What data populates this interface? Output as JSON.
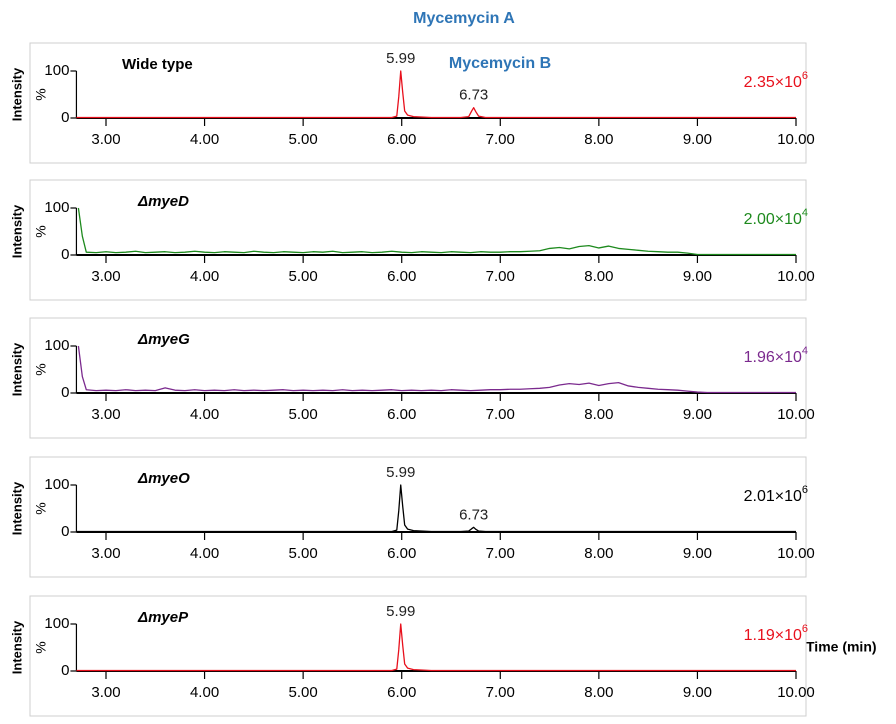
{
  "header": {
    "compound_a": "Mycemycin A",
    "compound_b": "Mycemycin B"
  },
  "x_axis_label": "Time (min)",
  "chart_data": [
    {
      "type": "line",
      "title": "Wide type",
      "color": "#e8101c",
      "x": [
        2.7,
        3.2,
        3.7,
        4.2,
        4.7,
        5.2,
        5.7,
        5.9,
        5.95,
        5.97,
        5.99,
        6.01,
        6.03,
        6.06,
        6.12,
        6.3,
        6.6,
        6.68,
        6.71,
        6.73,
        6.75,
        6.78,
        6.85,
        7.2,
        7.7,
        8.2,
        8.7,
        9.2,
        9.7,
        10.0
      ],
      "values": [
        1,
        1,
        1,
        1,
        1,
        1,
        1,
        1,
        4,
        45,
        100,
        55,
        15,
        6,
        3,
        1,
        1,
        3,
        15,
        22,
        14,
        4,
        1,
        1,
        1,
        1,
        1,
        1,
        1,
        1
      ],
      "xlim": [
        2.7,
        10.0
      ],
      "ylim": [
        0,
        100
      ],
      "xticks": [
        {
          "value": 3,
          "label": "3.00"
        },
        {
          "value": 4,
          "label": "4.00"
        },
        {
          "value": 5,
          "label": "5.00"
        },
        {
          "value": 6,
          "label": "6.00"
        },
        {
          "value": 7,
          "label": "7.00"
        },
        {
          "value": 8,
          "label": "8.00"
        },
        {
          "value": 9,
          "label": "9.00"
        },
        {
          "value": 10,
          "label": "10.00"
        }
      ],
      "yticks": [
        0,
        100
      ],
      "ylabel": "Intensity",
      "y_unit": "%",
      "scale": {
        "text": "2.35×10",
        "exponent": "6"
      },
      "peak_labels": [
        5.99,
        6.73
      ]
    },
    {
      "type": "line",
      "title": "ΔmyeD",
      "color": "#1e8a1e",
      "x": [
        2.72,
        2.76,
        2.8,
        2.9,
        3.0,
        3.1,
        3.2,
        3.3,
        3.4,
        3.5,
        3.6,
        3.7,
        3.8,
        3.9,
        4.0,
        4.1,
        4.2,
        4.3,
        4.4,
        4.5,
        4.6,
        4.7,
        4.8,
        4.9,
        5.0,
        5.1,
        5.2,
        5.3,
        5.4,
        5.5,
        5.6,
        5.7,
        5.8,
        5.9,
        6.0,
        6.1,
        6.2,
        6.3,
        6.4,
        6.5,
        6.6,
        6.7,
        6.8,
        6.9,
        7.0,
        7.1,
        7.2,
        7.3,
        7.4,
        7.5,
        7.6,
        7.7,
        7.8,
        7.9,
        8.0,
        8.1,
        8.2,
        8.3,
        8.4,
        8.5,
        8.6,
        8.7,
        8.8,
        8.9,
        9.0,
        9.1,
        9.2,
        9.4,
        9.6,
        9.8,
        10.0
      ],
      "values": [
        100,
        40,
        6,
        5,
        7,
        5,
        6,
        8,
        5,
        6,
        7,
        5,
        6,
        8,
        6,
        5,
        7,
        6,
        5,
        8,
        6,
        5,
        7,
        6,
        5,
        7,
        6,
        8,
        5,
        6,
        7,
        5,
        6,
        8,
        6,
        5,
        7,
        6,
        5,
        7,
        6,
        5,
        7,
        6,
        6,
        7,
        7,
        8,
        9,
        14,
        16,
        13,
        18,
        20,
        15,
        19,
        14,
        12,
        10,
        8,
        7,
        6,
        6,
        4,
        1,
        1,
        1,
        1,
        1,
        1,
        1
      ],
      "xlim": [
        2.7,
        10.0
      ],
      "ylim": [
        0,
        100
      ],
      "xticks": [
        {
          "value": 3,
          "label": "3.00"
        },
        {
          "value": 4,
          "label": "4.00"
        },
        {
          "value": 5,
          "label": "5.00"
        },
        {
          "value": 6,
          "label": "6.00"
        },
        {
          "value": 7,
          "label": "7.00"
        },
        {
          "value": 8,
          "label": "8.00"
        },
        {
          "value": 9,
          "label": "9.00"
        },
        {
          "value": 10,
          "label": "10.00"
        }
      ],
      "yticks": [
        0,
        100
      ],
      "ylabel": "Intensity",
      "y_unit": "%",
      "scale": {
        "text": "2.00×10",
        "exponent": "4"
      },
      "peak_labels": []
    },
    {
      "type": "line",
      "title": "ΔmyeG",
      "color": "#7b2a8e",
      "x": [
        2.72,
        2.76,
        2.8,
        2.9,
        3.0,
        3.1,
        3.2,
        3.3,
        3.4,
        3.5,
        3.6,
        3.7,
        3.8,
        3.9,
        4.0,
        4.1,
        4.2,
        4.3,
        4.4,
        4.5,
        4.6,
        4.7,
        4.8,
        4.9,
        5.0,
        5.1,
        5.2,
        5.3,
        5.4,
        5.5,
        5.6,
        5.7,
        5.8,
        5.9,
        6.0,
        6.1,
        6.2,
        6.3,
        6.4,
        6.5,
        6.6,
        6.7,
        6.8,
        6.9,
        7.0,
        7.1,
        7.2,
        7.3,
        7.4,
        7.5,
        7.6,
        7.7,
        7.8,
        7.9,
        8.0,
        8.1,
        8.2,
        8.3,
        8.4,
        8.5,
        8.6,
        8.7,
        8.8,
        8.9,
        9.0,
        9.1,
        9.2,
        9.4,
        9.6,
        9.8,
        10.0
      ],
      "values": [
        100,
        35,
        7,
        5,
        6,
        5,
        7,
        5,
        6,
        5,
        11,
        6,
        5,
        7,
        5,
        6,
        5,
        7,
        5,
        6,
        5,
        6,
        7,
        5,
        6,
        5,
        6,
        5,
        7,
        5,
        6,
        5,
        6,
        7,
        5,
        6,
        5,
        6,
        5,
        7,
        6,
        5,
        6,
        7,
        7,
        8,
        8,
        9,
        10,
        12,
        17,
        20,
        18,
        21,
        16,
        20,
        22,
        15,
        12,
        10,
        8,
        7,
        6,
        4,
        2,
        1,
        1,
        1,
        1,
        1,
        1
      ],
      "xlim": [
        2.7,
        10.0
      ],
      "ylim": [
        0,
        100
      ],
      "xticks": [
        {
          "value": 3,
          "label": "3.00"
        },
        {
          "value": 4,
          "label": "4.00"
        },
        {
          "value": 5,
          "label": "5.00"
        },
        {
          "value": 6,
          "label": "6.00"
        },
        {
          "value": 7,
          "label": "7.00"
        },
        {
          "value": 8,
          "label": "8.00"
        },
        {
          "value": 9,
          "label": "9.00"
        },
        {
          "value": 10,
          "label": "10.00"
        }
      ],
      "yticks": [
        0,
        100
      ],
      "ylabel": "Intensity",
      "y_unit": "%",
      "scale": {
        "text": "1.96×10",
        "exponent": "4"
      },
      "peak_labels": []
    },
    {
      "type": "line",
      "title": "ΔmyeO",
      "color": "#000000",
      "x": [
        2.7,
        3.2,
        3.7,
        4.2,
        4.7,
        5.2,
        5.7,
        5.9,
        5.95,
        5.97,
        5.99,
        6.01,
        6.03,
        6.06,
        6.12,
        6.3,
        6.6,
        6.68,
        6.71,
        6.73,
        6.75,
        6.78,
        6.85,
        7.2,
        7.7,
        8.2,
        8.7,
        9.2,
        9.7,
        10.0
      ],
      "values": [
        1,
        1,
        1,
        1,
        1,
        1,
        1,
        1,
        4,
        45,
        100,
        55,
        15,
        6,
        3,
        1,
        1,
        2,
        7,
        10,
        6,
        2,
        1,
        1,
        1,
        1,
        1,
        1,
        1,
        1
      ],
      "xlim": [
        2.7,
        10.0
      ],
      "ylim": [
        0,
        100
      ],
      "xticks": [
        {
          "value": 3,
          "label": "3.00"
        },
        {
          "value": 4,
          "label": "4.00"
        },
        {
          "value": 5,
          "label": "5.00"
        },
        {
          "value": 6,
          "label": "6.00"
        },
        {
          "value": 7,
          "label": "7.00"
        },
        {
          "value": 8,
          "label": "8.00"
        },
        {
          "value": 9,
          "label": "9.00"
        },
        {
          "value": 10,
          "label": "10.00"
        }
      ],
      "yticks": [
        0,
        100
      ],
      "ylabel": "Intensity",
      "y_unit": "%",
      "scale": {
        "text": "2.01×10",
        "exponent": "6"
      },
      "peak_labels": [
        5.99,
        6.73
      ]
    },
    {
      "type": "line",
      "title": "ΔmyeP",
      "color": "#e8101c",
      "x": [
        2.7,
        3.2,
        3.7,
        4.2,
        4.7,
        5.2,
        5.7,
        5.9,
        5.95,
        5.97,
        5.99,
        6.01,
        6.03,
        6.06,
        6.12,
        6.3,
        6.8,
        7.3,
        7.8,
        8.3,
        8.8,
        9.3,
        9.8,
        10.0
      ],
      "values": [
        1,
        1,
        1,
        1,
        1,
        1,
        1,
        1,
        4,
        45,
        100,
        55,
        15,
        6,
        3,
        1,
        1,
        1,
        1,
        1,
        1,
        1,
        1,
        1
      ],
      "xlim": [
        2.7,
        10.0
      ],
      "ylim": [
        0,
        100
      ],
      "xticks": [
        {
          "value": 3,
          "label": "3.00"
        },
        {
          "value": 4,
          "label": "4.00"
        },
        {
          "value": 5,
          "label": "5.00"
        },
        {
          "value": 6,
          "label": "6.00"
        },
        {
          "value": 7,
          "label": "7.00"
        },
        {
          "value": 8,
          "label": "8.00"
        },
        {
          "value": 9,
          "label": "9.00"
        },
        {
          "value": 10,
          "label": "10.00"
        }
      ],
      "yticks": [
        0,
        100
      ],
      "ylabel": "Intensity",
      "y_unit": "%",
      "scale": {
        "text": "1.19×10",
        "exponent": "6"
      },
      "peak_labels": [
        5.99
      ]
    }
  ]
}
